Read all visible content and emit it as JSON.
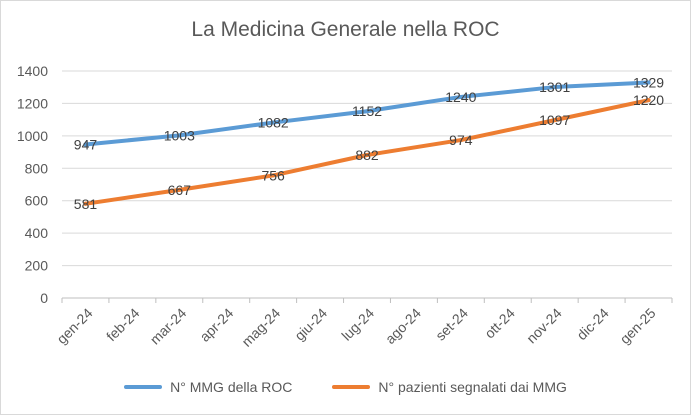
{
  "chart_data": {
    "type": "line",
    "title": "La Medicina Generale nella ROC",
    "xlabel": "",
    "ylabel": "",
    "ylim": [
      0,
      1400
    ],
    "yticks": [
      0,
      200,
      400,
      600,
      800,
      1000,
      1200,
      1400
    ],
    "grid": true,
    "legend_position": "bottom",
    "categories": [
      "gen-24",
      "feb-24",
      "mar-24",
      "apr-24",
      "mag-24",
      "giu-24",
      "lug-24",
      "ago-24",
      "set-24",
      "ott-24",
      "nov-24",
      "dic-24",
      "gen-25"
    ],
    "series": [
      {
        "name": "N° MMG della ROC",
        "color": "#5b9bd5",
        "points": [
          {
            "x": "gen-24",
            "y": 947,
            "labeled": true
          },
          {
            "x": "mar-24",
            "y": 1003,
            "labeled": true
          },
          {
            "x": "mag-24",
            "y": 1082,
            "labeled": true
          },
          {
            "x": "lug-24",
            "y": 1152,
            "labeled": true
          },
          {
            "x": "set-24",
            "y": 1240,
            "labeled": true
          },
          {
            "x": "nov-24",
            "y": 1301,
            "labeled": true
          },
          {
            "x": "gen-25",
            "y": 1329,
            "labeled": true
          }
        ]
      },
      {
        "name": "N° pazienti segnalati dai MMG",
        "color": "#ed7d31",
        "points": [
          {
            "x": "gen-24",
            "y": 581,
            "labeled": true
          },
          {
            "x": "mar-24",
            "y": 667,
            "labeled": true
          },
          {
            "x": "mag-24",
            "y": 756,
            "labeled": true
          },
          {
            "x": "lug-24",
            "y": 882,
            "labeled": true
          },
          {
            "x": "set-24",
            "y": 974,
            "labeled": true
          },
          {
            "x": "nov-24",
            "y": 1097,
            "labeled": true
          },
          {
            "x": "gen-25",
            "y": 1220,
            "labeled": true
          }
        ]
      }
    ]
  }
}
